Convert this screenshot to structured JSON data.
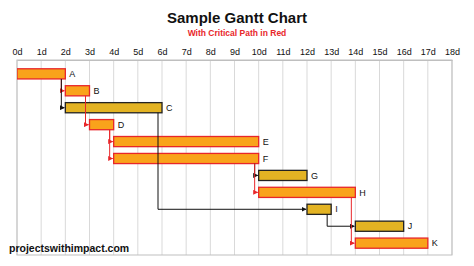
{
  "chart_data": {
    "type": "gantt",
    "title": "Sample Gantt Chart",
    "subtitle": "With Critical Path in Red",
    "annotation": "projectswithimpact.com",
    "categories": [
      "A",
      "B",
      "C",
      "D",
      "E",
      "F",
      "G",
      "H",
      "I",
      "J",
      "K"
    ],
    "starts": [
      0,
      2,
      2,
      3,
      4,
      4,
      10,
      10,
      12,
      14,
      14
    ],
    "ends": [
      2,
      3,
      6,
      4,
      10,
      10,
      12,
      14,
      13,
      16,
      17
    ],
    "critical": [
      true,
      true,
      false,
      true,
      true,
      true,
      false,
      true,
      false,
      false,
      true
    ],
    "colors": [
      "#f9a31b",
      "#f9a31b",
      "#e3b323",
      "#f9a31b",
      "#f9a31b",
      "#f9a31b",
      "#e3b323",
      "#f9a31b",
      "#e3b323",
      "#e3b323",
      "#f9a31b"
    ],
    "dependencies": [
      [
        "A",
        "B"
      ],
      [
        "A",
        "C"
      ],
      [
        "B",
        "D"
      ],
      [
        "D",
        "E"
      ],
      [
        "D",
        "F"
      ],
      [
        "F",
        "G"
      ],
      [
        "F",
        "H"
      ],
      [
        "C",
        "I"
      ],
      [
        "I",
        "J"
      ],
      [
        "H",
        "K"
      ]
    ],
    "xlim": [
      0,
      18
    ],
    "xticks": [
      {
        "value": 0,
        "label": "0d"
      },
      {
        "value": 1,
        "label": "1d"
      },
      {
        "value": 2,
        "label": "2d"
      },
      {
        "value": 3,
        "label": "3d"
      },
      {
        "value": 4,
        "label": "4d"
      },
      {
        "value": 5,
        "label": "5d"
      },
      {
        "value": 6,
        "label": "6d"
      },
      {
        "value": 7,
        "label": "7d"
      },
      {
        "value": 8,
        "label": "8d"
      },
      {
        "value": 9,
        "label": "9d"
      },
      {
        "value": 10,
        "label": "10d"
      },
      {
        "value": 11,
        "label": "11d"
      },
      {
        "value": 12,
        "label": "12d"
      },
      {
        "value": 13,
        "label": "13d"
      },
      {
        "value": 14,
        "label": "14d"
      },
      {
        "value": 15,
        "label": "15d"
      },
      {
        "value": 16,
        "label": "16d"
      },
      {
        "value": 17,
        "label": "17d"
      },
      {
        "value": 18,
        "label": "18d"
      }
    ],
    "grid": true
  }
}
